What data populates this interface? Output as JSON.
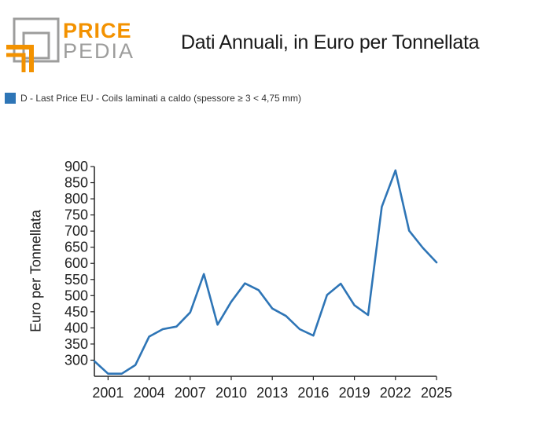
{
  "logo": {
    "top": "PRICE",
    "bottom": "PEDIA",
    "accent": "#F39200",
    "gray": "#9D9D9C"
  },
  "chart_data": {
    "type": "line",
    "title": "Dati Annuali, in Euro per Tonnellata",
    "xlabel": "",
    "ylabel": "Euro per Tonnellata",
    "xlim": [
      2000,
      2025
    ],
    "ylim": [
      250,
      900
    ],
    "xticks": [
      2001,
      2004,
      2007,
      2010,
      2013,
      2016,
      2019,
      2022,
      2025
    ],
    "yticks": [
      300,
      350,
      400,
      450,
      500,
      550,
      600,
      650,
      700,
      750,
      800,
      850,
      900
    ],
    "grid": false,
    "legend_position": "top-left",
    "series": [
      {
        "name": "D - Last Price EU - Coils laminati a caldo (spessore ≥ 3 < 4,75 mm)",
        "color": "#2E75B6",
        "x": [
          2000,
          2001,
          2002,
          2003,
          2004,
          2005,
          2006,
          2007,
          2008,
          2009,
          2010,
          2011,
          2012,
          2013,
          2014,
          2015,
          2016,
          2017,
          2018,
          2019,
          2020,
          2021,
          2022,
          2023,
          2024,
          2025
        ],
        "y": [
          297,
          258,
          258,
          285,
          373,
          396,
          404,
          448,
          567,
          410,
          481,
          538,
          517,
          460,
          437,
          396,
          376,
          502,
          537,
          470,
          440,
          775,
          888,
          701,
          648,
          603
        ]
      }
    ]
  }
}
